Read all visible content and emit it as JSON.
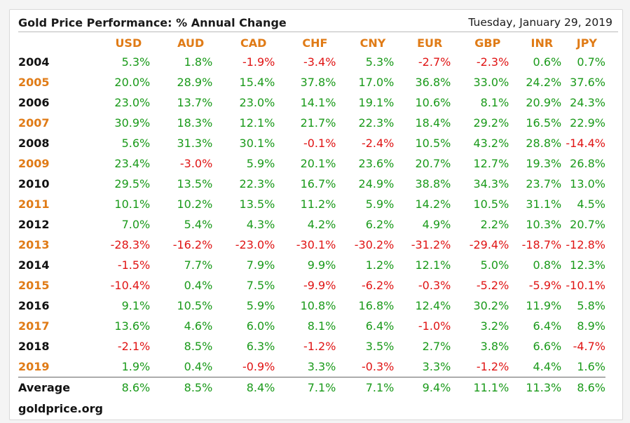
{
  "chart_data": {
    "type": "table",
    "title": "Gold Price Performance: % Annual Change",
    "date": "Tuesday, January 29, 2019",
    "columns": [
      "USD",
      "AUD",
      "CAD",
      "CHF",
      "CNY",
      "EUR",
      "GBP",
      "INR",
      "JPY"
    ],
    "rows": [
      {
        "label": "2004",
        "values": [
          "5.3%",
          "1.8%",
          "-1.9%",
          "-3.4%",
          "5.3%",
          "-2.7%",
          "-2.3%",
          "0.6%",
          "0.7%"
        ]
      },
      {
        "label": "2005",
        "values": [
          "20.0%",
          "28.9%",
          "15.4%",
          "37.8%",
          "17.0%",
          "36.8%",
          "33.0%",
          "24.2%",
          "37.6%"
        ]
      },
      {
        "label": "2006",
        "values": [
          "23.0%",
          "13.7%",
          "23.0%",
          "14.1%",
          "19.1%",
          "10.6%",
          "8.1%",
          "20.9%",
          "24.3%"
        ]
      },
      {
        "label": "2007",
        "values": [
          "30.9%",
          "18.3%",
          "12.1%",
          "21.7%",
          "22.3%",
          "18.4%",
          "29.2%",
          "16.5%",
          "22.9%"
        ]
      },
      {
        "label": "2008",
        "values": [
          "5.6%",
          "31.3%",
          "30.1%",
          "-0.1%",
          "-2.4%",
          "10.5%",
          "43.2%",
          "28.8%",
          "-14.4%"
        ]
      },
      {
        "label": "2009",
        "values": [
          "23.4%",
          "-3.0%",
          "5.9%",
          "20.1%",
          "23.6%",
          "20.7%",
          "12.7%",
          "19.3%",
          "26.8%"
        ]
      },
      {
        "label": "2010",
        "values": [
          "29.5%",
          "13.5%",
          "22.3%",
          "16.7%",
          "24.9%",
          "38.8%",
          "34.3%",
          "23.7%",
          "13.0%"
        ]
      },
      {
        "label": "2011",
        "values": [
          "10.1%",
          "10.2%",
          "13.5%",
          "11.2%",
          "5.9%",
          "14.2%",
          "10.5%",
          "31.1%",
          "4.5%"
        ]
      },
      {
        "label": "2012",
        "values": [
          "7.0%",
          "5.4%",
          "4.3%",
          "4.2%",
          "6.2%",
          "4.9%",
          "2.2%",
          "10.3%",
          "20.7%"
        ]
      },
      {
        "label": "2013",
        "values": [
          "-28.3%",
          "-16.2%",
          "-23.0%",
          "-30.1%",
          "-30.2%",
          "-31.2%",
          "-29.4%",
          "-18.7%",
          "-12.8%"
        ]
      },
      {
        "label": "2014",
        "values": [
          "-1.5%",
          "7.7%",
          "7.9%",
          "9.9%",
          "1.2%",
          "12.1%",
          "5.0%",
          "0.8%",
          "12.3%"
        ]
      },
      {
        "label": "2015",
        "values": [
          "-10.4%",
          "0.4%",
          "7.5%",
          "-9.9%",
          "-6.2%",
          "-0.3%",
          "-5.2%",
          "-5.9%",
          "-10.1%"
        ]
      },
      {
        "label": "2016",
        "values": [
          "9.1%",
          "10.5%",
          "5.9%",
          "10.8%",
          "16.8%",
          "12.4%",
          "30.2%",
          "11.9%",
          "5.8%"
        ]
      },
      {
        "label": "2017",
        "values": [
          "13.6%",
          "4.6%",
          "6.0%",
          "8.1%",
          "6.4%",
          "-1.0%",
          "3.2%",
          "6.4%",
          "8.9%"
        ]
      },
      {
        "label": "2018",
        "values": [
          "-2.1%",
          "8.5%",
          "6.3%",
          "-1.2%",
          "3.5%",
          "2.7%",
          "3.8%",
          "6.6%",
          "-4.7%"
        ]
      },
      {
        "label": "2019",
        "values": [
          "1.9%",
          "0.4%",
          "-0.9%",
          "3.3%",
          "-0.3%",
          "3.3%",
          "-1.2%",
          "4.4%",
          "1.6%"
        ]
      }
    ],
    "average": {
      "label": "Average",
      "values": [
        "8.6%",
        "8.5%",
        "8.4%",
        "7.1%",
        "7.1%",
        "9.4%",
        "11.1%",
        "11.3%",
        "8.6%"
      ]
    },
    "colors": {
      "positive": "#1a9a1a",
      "negative": "#e01414",
      "header": "#e07b16",
      "year_alt": "#e07b16"
    }
  },
  "footer": "goldprice.org"
}
